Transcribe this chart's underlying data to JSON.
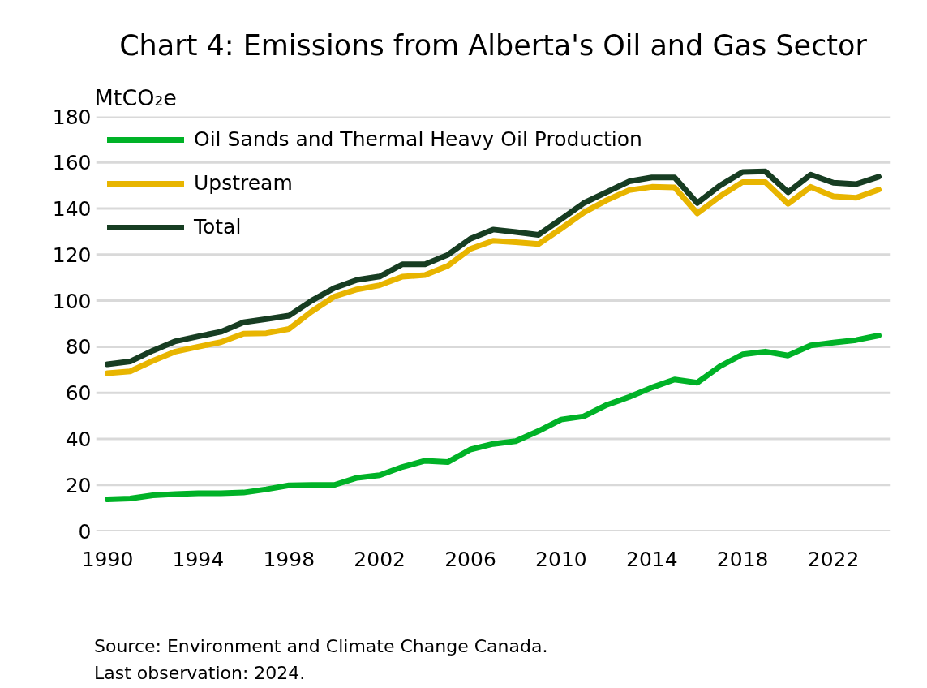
{
  "chart_data": {
    "type": "line",
    "title": "Chart 4: Emissions from Alberta's Oil and Gas Sector",
    "ylabel": "MtCO₂e",
    "x": [
      1990,
      1991,
      1992,
      1993,
      1994,
      1995,
      1996,
      1997,
      1998,
      1999,
      2000,
      2001,
      2002,
      2003,
      2004,
      2005,
      2006,
      2007,
      2008,
      2009,
      2010,
      2011,
      2012,
      2013,
      2014,
      2015,
      2016,
      2017,
      2018,
      2019,
      2020,
      2021,
      2022,
      2023,
      2024
    ],
    "series": [
      {
        "name": "Oil Sands and Thermal Heavy Oil Production",
        "color": "#00b227",
        "values": [
          13.7,
          14.1,
          15.5,
          16.0,
          16.4,
          16.4,
          16.7,
          18.1,
          19.8,
          20.0,
          20.0,
          23.1,
          24.2,
          27.8,
          30.5,
          29.9,
          35.4,
          37.8,
          39.0,
          43.4,
          48.4,
          49.8,
          54.7,
          58.2,
          62.3,
          65.8,
          64.4,
          71.5,
          76.7,
          77.9,
          76.2,
          80.6,
          81.8,
          82.9,
          84.9
        ]
      },
      {
        "name": "Upstream",
        "color": "#e8b500",
        "values": [
          68.5,
          69.3,
          73.9,
          77.9,
          80.0,
          82.0,
          85.7,
          85.9,
          87.7,
          95.3,
          101.8,
          104.9,
          106.7,
          110.4,
          111.1,
          115.1,
          122.5,
          126.0,
          125.4,
          124.6,
          131.3,
          138.3,
          143.6,
          148.0,
          149.4,
          149.2,
          137.9,
          145.3,
          151.5,
          151.5,
          142.1,
          149.4,
          145.3,
          144.7,
          148.2
        ]
      },
      {
        "name": "Total",
        "color": "#173d22",
        "values": [
          72.4,
          73.6,
          78.3,
          82.4,
          84.5,
          86.5,
          90.6,
          92.0,
          93.5,
          100.0,
          105.5,
          109.0,
          110.5,
          115.8,
          115.8,
          119.9,
          126.9,
          130.9,
          129.8,
          128.6,
          135.4,
          142.4,
          147.1,
          151.8,
          153.5,
          153.5,
          142.4,
          150.0,
          155.9,
          156.1,
          147.1,
          154.7,
          151.2,
          150.6,
          153.8
        ]
      }
    ],
    "xlim": [
      1989.5,
      2024.5
    ],
    "ylim": [
      0,
      180
    ],
    "xticks": [
      1990,
      1994,
      1998,
      2002,
      2006,
      2010,
      2014,
      2018,
      2022
    ],
    "yticks": [
      0,
      20,
      40,
      60,
      80,
      100,
      120,
      140,
      160,
      180
    ],
    "grid": "y",
    "legend": "top left",
    "line_style": "solid",
    "annotations": [
      "Source: Environment and Climate Change Canada.",
      "Last observation: 2024."
    ]
  }
}
